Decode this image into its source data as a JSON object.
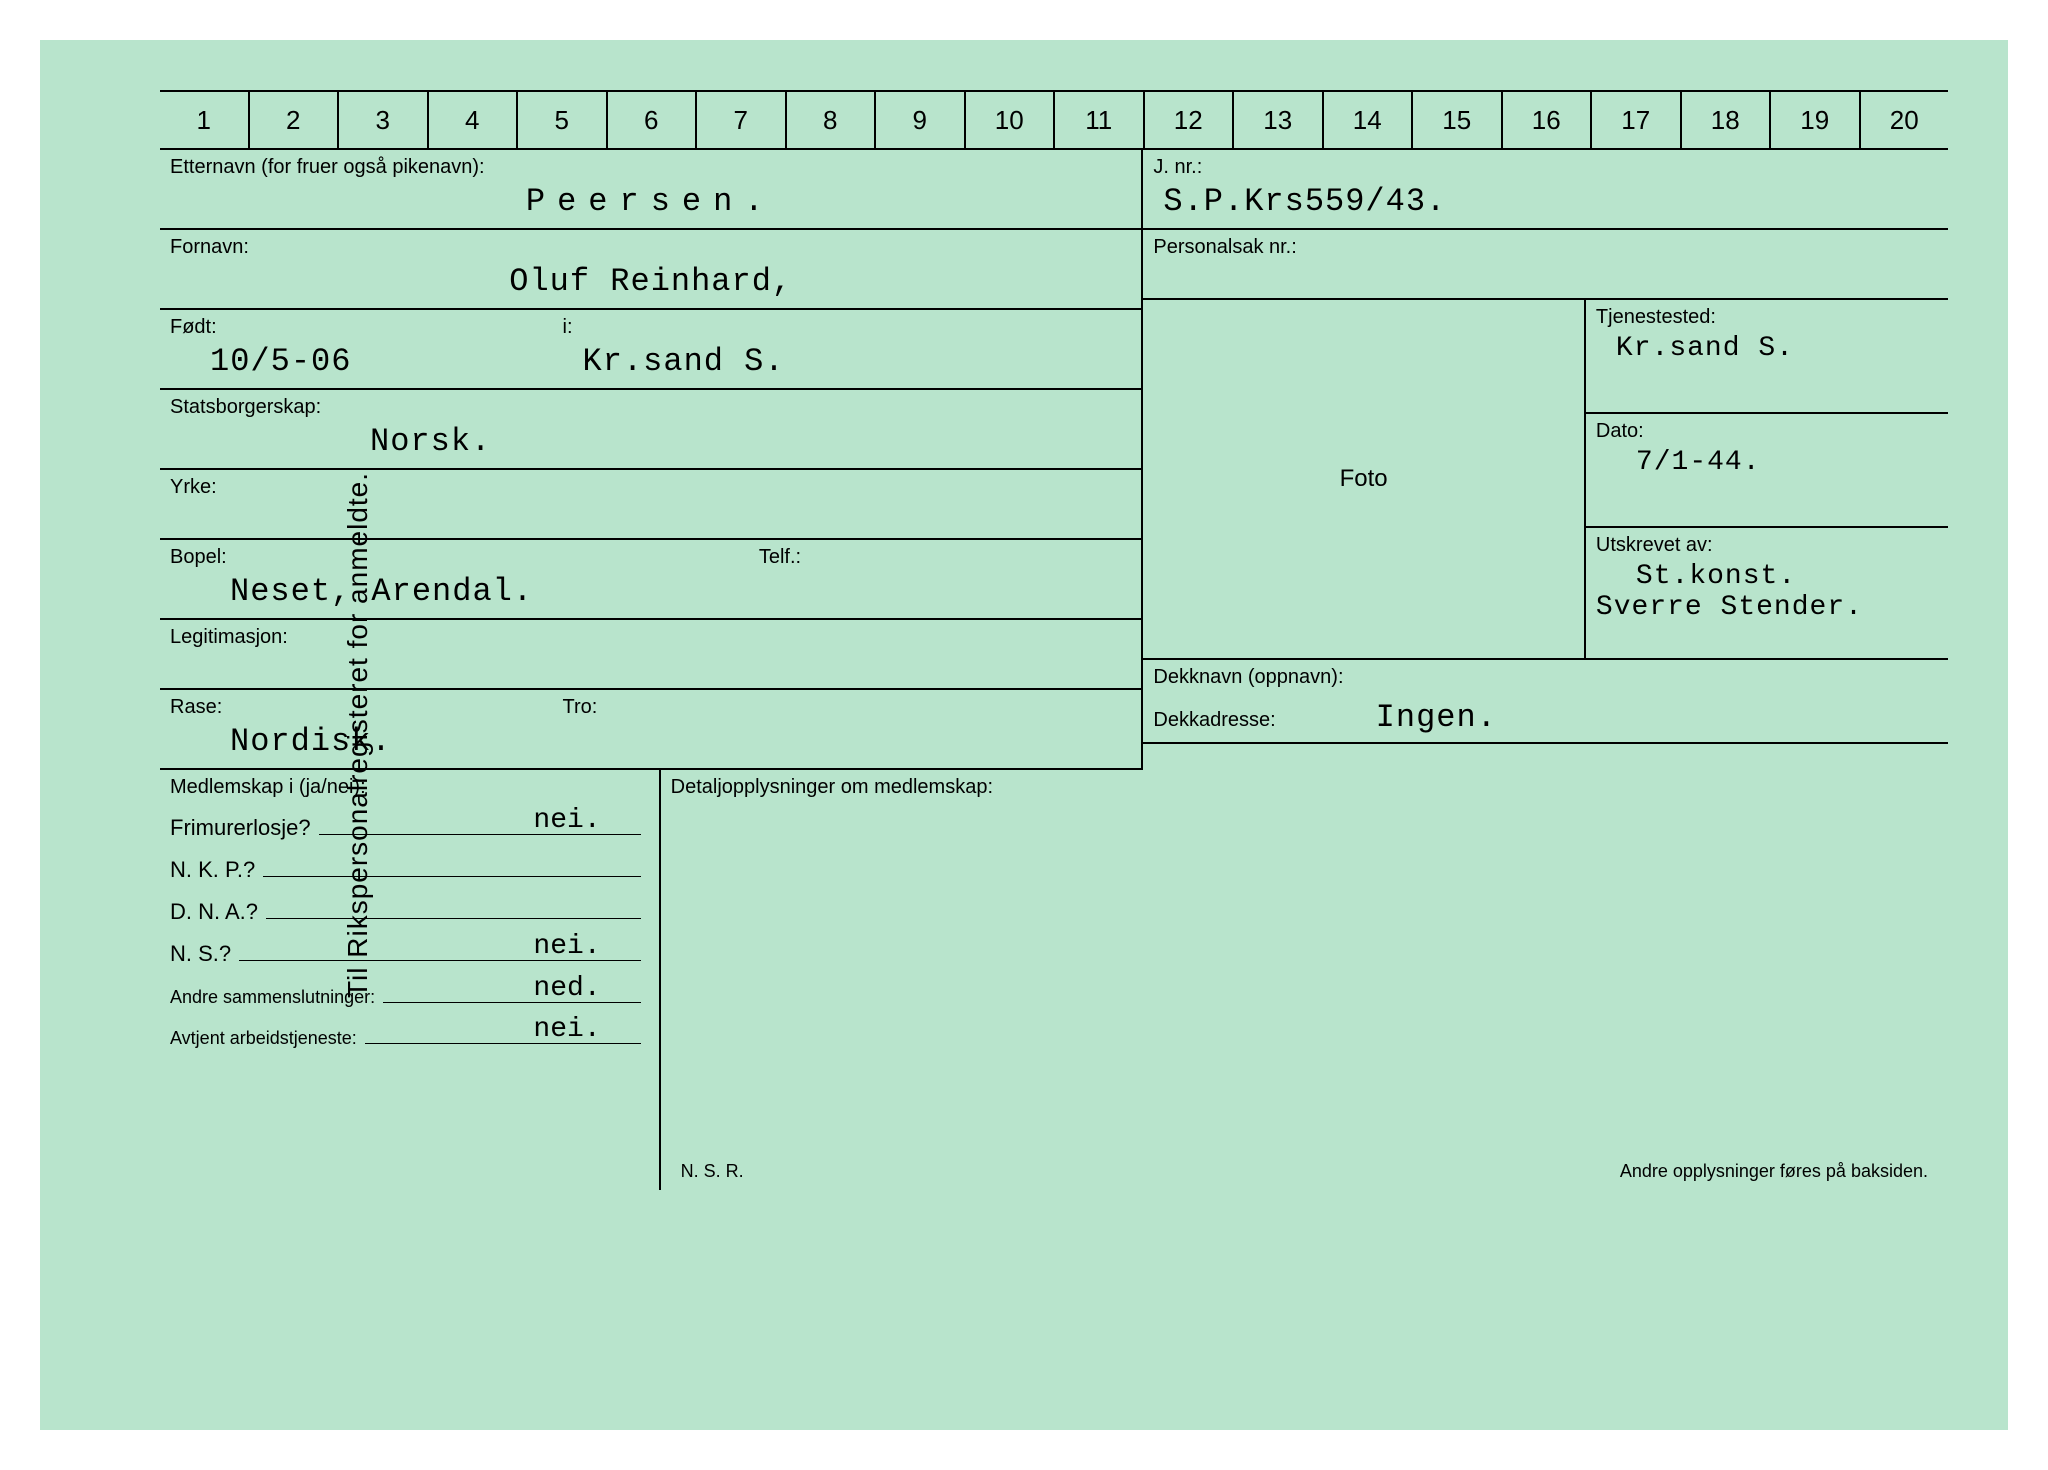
{
  "vertical_label": "Til Rikspersonalregisteret for anmeldte.",
  "numbers": [
    "1",
    "2",
    "3",
    "4",
    "5",
    "6",
    "7",
    "8",
    "9",
    "10",
    "11",
    "12",
    "13",
    "14",
    "15",
    "16",
    "17",
    "18",
    "19",
    "20"
  ],
  "etternavn": {
    "label": "Etternavn (for fruer også pikenavn):",
    "value": "Peersen."
  },
  "fornavn": {
    "label": "Fornavn:",
    "value": "Oluf Reinhard,"
  },
  "fodt": {
    "label": "Født:",
    "value": "10/5-06"
  },
  "fodt_i": {
    "label": "i:",
    "value": "Kr.sand S."
  },
  "statsborgerskap": {
    "label": "Statsborgerskap:",
    "value": "Norsk."
  },
  "yrke": {
    "label": "Yrke:",
    "value": ""
  },
  "bopel": {
    "label": "Bopel:",
    "value": "Neset, Arendal."
  },
  "telf": {
    "label": "Telf.:",
    "value": ""
  },
  "legitimasjon": {
    "label": "Legitimasjon:",
    "value": ""
  },
  "rase": {
    "label": "Rase:",
    "value": "Nordisk."
  },
  "tro": {
    "label": "Tro:",
    "value": ""
  },
  "jnr": {
    "label": "J. nr.:",
    "value": "S.P.Krs559/43."
  },
  "personalsak": {
    "label": "Personalsak nr.:",
    "value": ""
  },
  "foto_label": "Foto",
  "tjenestested": {
    "label": "Tjenestested:",
    "value": "Kr.sand S."
  },
  "dato": {
    "label": "Dato:",
    "value": "7/1-44."
  },
  "utskrevet": {
    "label": "Utskrevet av:",
    "value1": "St.konst.",
    "value2": "Sverre Stender."
  },
  "dekknavn": {
    "label": "Dekknavn (oppnavn):",
    "value": "Ingen."
  },
  "dekkadresse": {
    "label": "Dekkadresse:"
  },
  "medlemskap": {
    "header": "Medlemskap i (ja/nei):",
    "detail_header": "Detaljopplysninger om medlemskap:",
    "items": [
      {
        "label": "Frimurerlosje?",
        "value": "nei."
      },
      {
        "label": "N. K. P.?",
        "value": ""
      },
      {
        "label": "D. N. A.?",
        "value": ""
      },
      {
        "label": "N. S.?",
        "value": "nei."
      },
      {
        "label": "Andre sammenslutninger:",
        "value": "ned.",
        "small": true
      },
      {
        "label": "Avtjent arbeidstjeneste:",
        "value": "nei.",
        "small": true
      }
    ]
  },
  "footer": {
    "nsr": "N. S. R.",
    "back_note": "Andre opplysninger føres på baksiden."
  },
  "colors": {
    "card_bg": "#b8e4cc",
    "line": "#000000",
    "text": "#000000"
  }
}
